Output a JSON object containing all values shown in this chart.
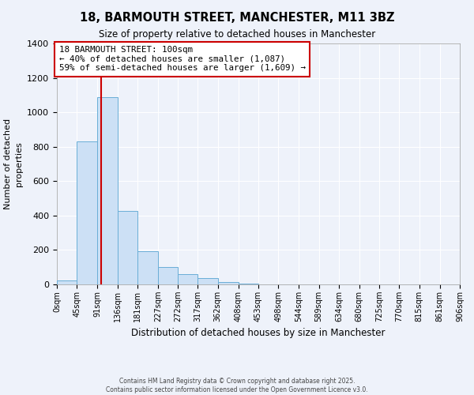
{
  "title": "18, BARMOUTH STREET, MANCHESTER, M11 3BZ",
  "subtitle": "Size of property relative to detached houses in Manchester",
  "xlabel": "Distribution of detached houses by size in Manchester",
  "ylabel": "Number of detached\nproperties",
  "bar_color": "#cce0f5",
  "bar_edge_color": "#6aaed6",
  "background_color": "#eef2fa",
  "grid_color": "#ffffff",
  "bin_edges": [
    0,
    45,
    91,
    136,
    181,
    227,
    272,
    317,
    362,
    408,
    453,
    498,
    544,
    589,
    634,
    680,
    725,
    770,
    815,
    861,
    906
  ],
  "bar_heights": [
    25,
    830,
    1090,
    425,
    195,
    100,
    58,
    38,
    15,
    5,
    2,
    0,
    0,
    0,
    0,
    0,
    0,
    0,
    0,
    0
  ],
  "tick_labels": [
    "0sqm",
    "45sqm",
    "91sqm",
    "136sqm",
    "181sqm",
    "227sqm",
    "272sqm",
    "317sqm",
    "362sqm",
    "408sqm",
    "453sqm",
    "498sqm",
    "544sqm",
    "589sqm",
    "634sqm",
    "680sqm",
    "725sqm",
    "770sqm",
    "815sqm",
    "861sqm",
    "906sqm"
  ],
  "ylim": [
    0,
    1400
  ],
  "yticks": [
    0,
    200,
    400,
    600,
    800,
    1000,
    1200,
    1400
  ],
  "property_line_x": 100,
  "annotation_title": "18 BARMOUTH STREET: 100sqm",
  "annotation_line1": "← 40% of detached houses are smaller (1,087)",
  "annotation_line2": "59% of semi-detached houses are larger (1,609) →",
  "annotation_box_color": "#ffffff",
  "annotation_box_edge": "#cc0000",
  "property_line_color": "#cc0000",
  "footer1": "Contains HM Land Registry data © Crown copyright and database right 2025.",
  "footer2": "Contains public sector information licensed under the Open Government Licence v3.0."
}
